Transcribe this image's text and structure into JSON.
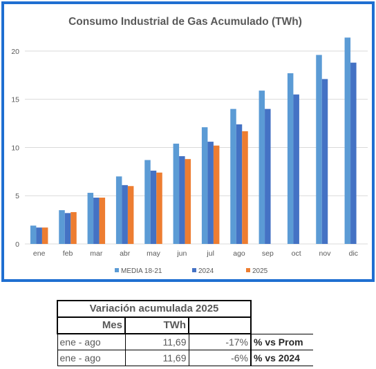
{
  "chart_data": {
    "type": "bar",
    "title": "Consumo Industrial de Gas Acumulado (TWh)",
    "categories": [
      "ene",
      "feb",
      "mar",
      "abr",
      "may",
      "jun",
      "jul",
      "ago",
      "sep",
      "oct",
      "nov",
      "dic"
    ],
    "y_ticks": [
      "0",
      "5",
      "10",
      "15",
      "20"
    ],
    "ylim": [
      0,
      22
    ],
    "grid": true,
    "legend_position": "bottom",
    "series": [
      {
        "name": "MEDIA 18-21",
        "color": "#5b9bd5",
        "values": [
          1.9,
          3.5,
          5.3,
          7.0,
          8.7,
          10.4,
          12.1,
          14.0,
          15.9,
          17.7,
          19.6,
          21.4
        ]
      },
      {
        "name": "2024",
        "color": "#4472c4",
        "values": [
          1.7,
          3.2,
          4.8,
          6.1,
          7.6,
          9.1,
          10.6,
          12.4,
          14.0,
          15.5,
          17.1,
          18.8
        ]
      },
      {
        "name": "2025",
        "color": "#ed7d31",
        "values": [
          1.7,
          3.3,
          4.8,
          6.0,
          7.4,
          8.8,
          10.2,
          11.69,
          null,
          null,
          null,
          null
        ]
      }
    ]
  },
  "table": {
    "title": "Variación acumulada 2025",
    "col_mes": "Mes",
    "col_twh": "TWh",
    "rows": [
      {
        "mes": "ene - ago",
        "twh": "11,69",
        "pct": "-17%",
        "note": "% vs Prom"
      },
      {
        "mes": "ene - ago",
        "twh": "11,69",
        "pct": "-6%",
        "note": "% vs 2024"
      }
    ]
  }
}
